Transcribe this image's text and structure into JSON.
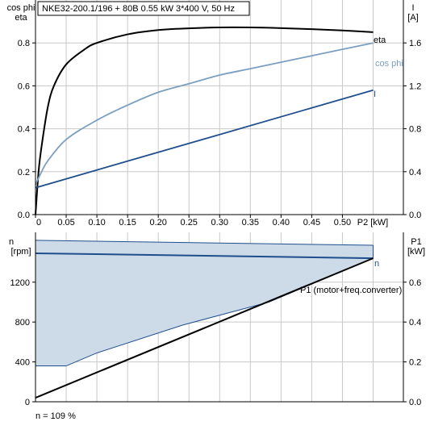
{
  "colors": {
    "eta": "#000000",
    "cos_phi": "#7b9fc0",
    "current": "#1f4e8c",
    "n": "#1f4e8c",
    "n_band_fill": "#cddbe9",
    "n_band_stroke": "#1f4e8c",
    "p1": "#000000",
    "grid": "#c8c8c8"
  },
  "footer_note": "n = 109 %",
  "chart_data": [
    {
      "type": "line",
      "title": "NKE32-200.1/196 + 80B   0.55 kW   3*400 V, 50 Hz",
      "xlabel": "P2 [kW]",
      "ylabel_left_line1": "cos phi",
      "ylabel_left_line2": "eta",
      "ylabel_right_line1": "I",
      "ylabel_right_line2": "[A]",
      "xlim": [
        0,
        0.55
      ],
      "ylim_left": [
        0,
        1.0
      ],
      "ylim_right": [
        0,
        2.0
      ],
      "x_ticks": [
        "0",
        "0.05",
        "0.10",
        "0.15",
        "0.20",
        "0.25",
        "0.30",
        "0.35",
        "0.40",
        "0.45",
        "0.50"
      ],
      "y_ticks_left": [
        "0.0",
        "0.2",
        "0.4",
        "0.6",
        "0.8"
      ],
      "y_ticks_right": [
        "0.0",
        "0.4",
        "0.8",
        "1.2",
        "1.6"
      ],
      "grid": true,
      "series": [
        {
          "name": "eta",
          "axis": "left",
          "x": [
            0,
            0.005,
            0.01,
            0.02,
            0.03,
            0.05,
            0.08,
            0.1,
            0.15,
            0.2,
            0.25,
            0.3,
            0.35,
            0.4,
            0.45,
            0.5,
            0.55
          ],
          "y": [
            0.0,
            0.2,
            0.32,
            0.5,
            0.6,
            0.7,
            0.77,
            0.8,
            0.84,
            0.86,
            0.868,
            0.872,
            0.872,
            0.869,
            0.864,
            0.858,
            0.85
          ]
        },
        {
          "name": "cos phi",
          "axis": "left",
          "x": [
            0,
            0.01,
            0.02,
            0.05,
            0.1,
            0.15,
            0.2,
            0.25,
            0.3,
            0.35,
            0.4,
            0.45,
            0.5,
            0.55
          ],
          "y": [
            0.14,
            0.2,
            0.25,
            0.35,
            0.44,
            0.51,
            0.57,
            0.61,
            0.65,
            0.68,
            0.71,
            0.74,
            0.77,
            0.8
          ]
        },
        {
          "name": "I",
          "axis": "right",
          "x": [
            0,
            0.55
          ],
          "y": [
            0.25,
            1.16
          ]
        }
      ]
    },
    {
      "type": "area",
      "xlim": [
        0,
        0.55
      ],
      "ylabel_left_line1": "n",
      "ylabel_left_line2": "[rpm]",
      "ylabel_right_line1": "P1",
      "ylabel_right_line2": "[kW]",
      "ylim_left": [
        0,
        1700
      ],
      "ylim_right": [
        0,
        0.85
      ],
      "y_ticks_left": [
        "0",
        "400",
        "800",
        "1200"
      ],
      "y_ticks_right": [
        "0.0",
        "0.2",
        "0.4",
        "0.6"
      ],
      "grid": true,
      "band_upper": {
        "x": [
          0,
          0.55
        ],
        "y": [
          1620,
          1570
        ]
      },
      "band_lower": {
        "x": [
          0,
          0.05,
          0.1,
          0.24,
          0.38,
          0.55
        ],
        "y": [
          360,
          360,
          490,
          770,
          1000,
          1440
        ]
      },
      "series": [
        {
          "name": "n",
          "axis": "left",
          "x": [
            0,
            0.55
          ],
          "y": [
            1490,
            1440
          ]
        },
        {
          "name": "P1 (motor+freq.converter)",
          "axis": "right",
          "x": [
            0,
            0.55
          ],
          "y": [
            0.02,
            0.72
          ]
        }
      ]
    }
  ]
}
